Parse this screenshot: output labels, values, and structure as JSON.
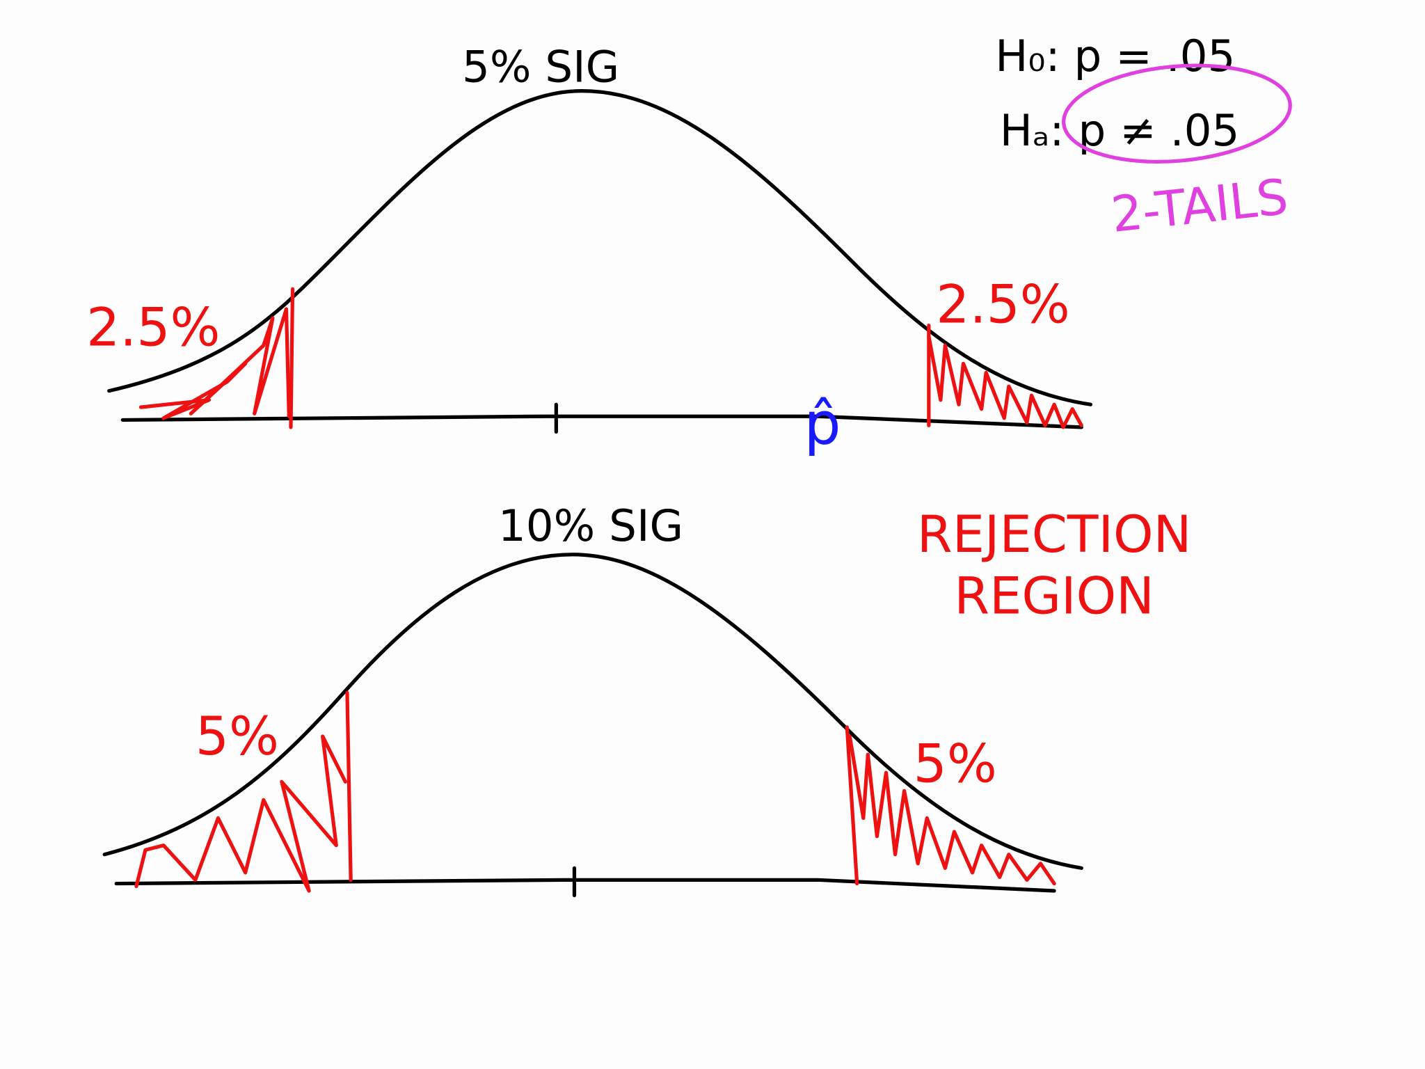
{
  "diagrams": [
    {
      "title": "5% SIG",
      "left_tail": "2.5%",
      "right_tail": "2.5%",
      "marker": "p̂"
    },
    {
      "title": "10% SIG",
      "left_tail": "5%",
      "right_tail": "5%"
    }
  ],
  "hypotheses": {
    "null": "H₀: p = .05",
    "alternative": "Hₐ: p ≠ .05",
    "note": "2-TAILS"
  },
  "label": "REJECTION REGION"
}
